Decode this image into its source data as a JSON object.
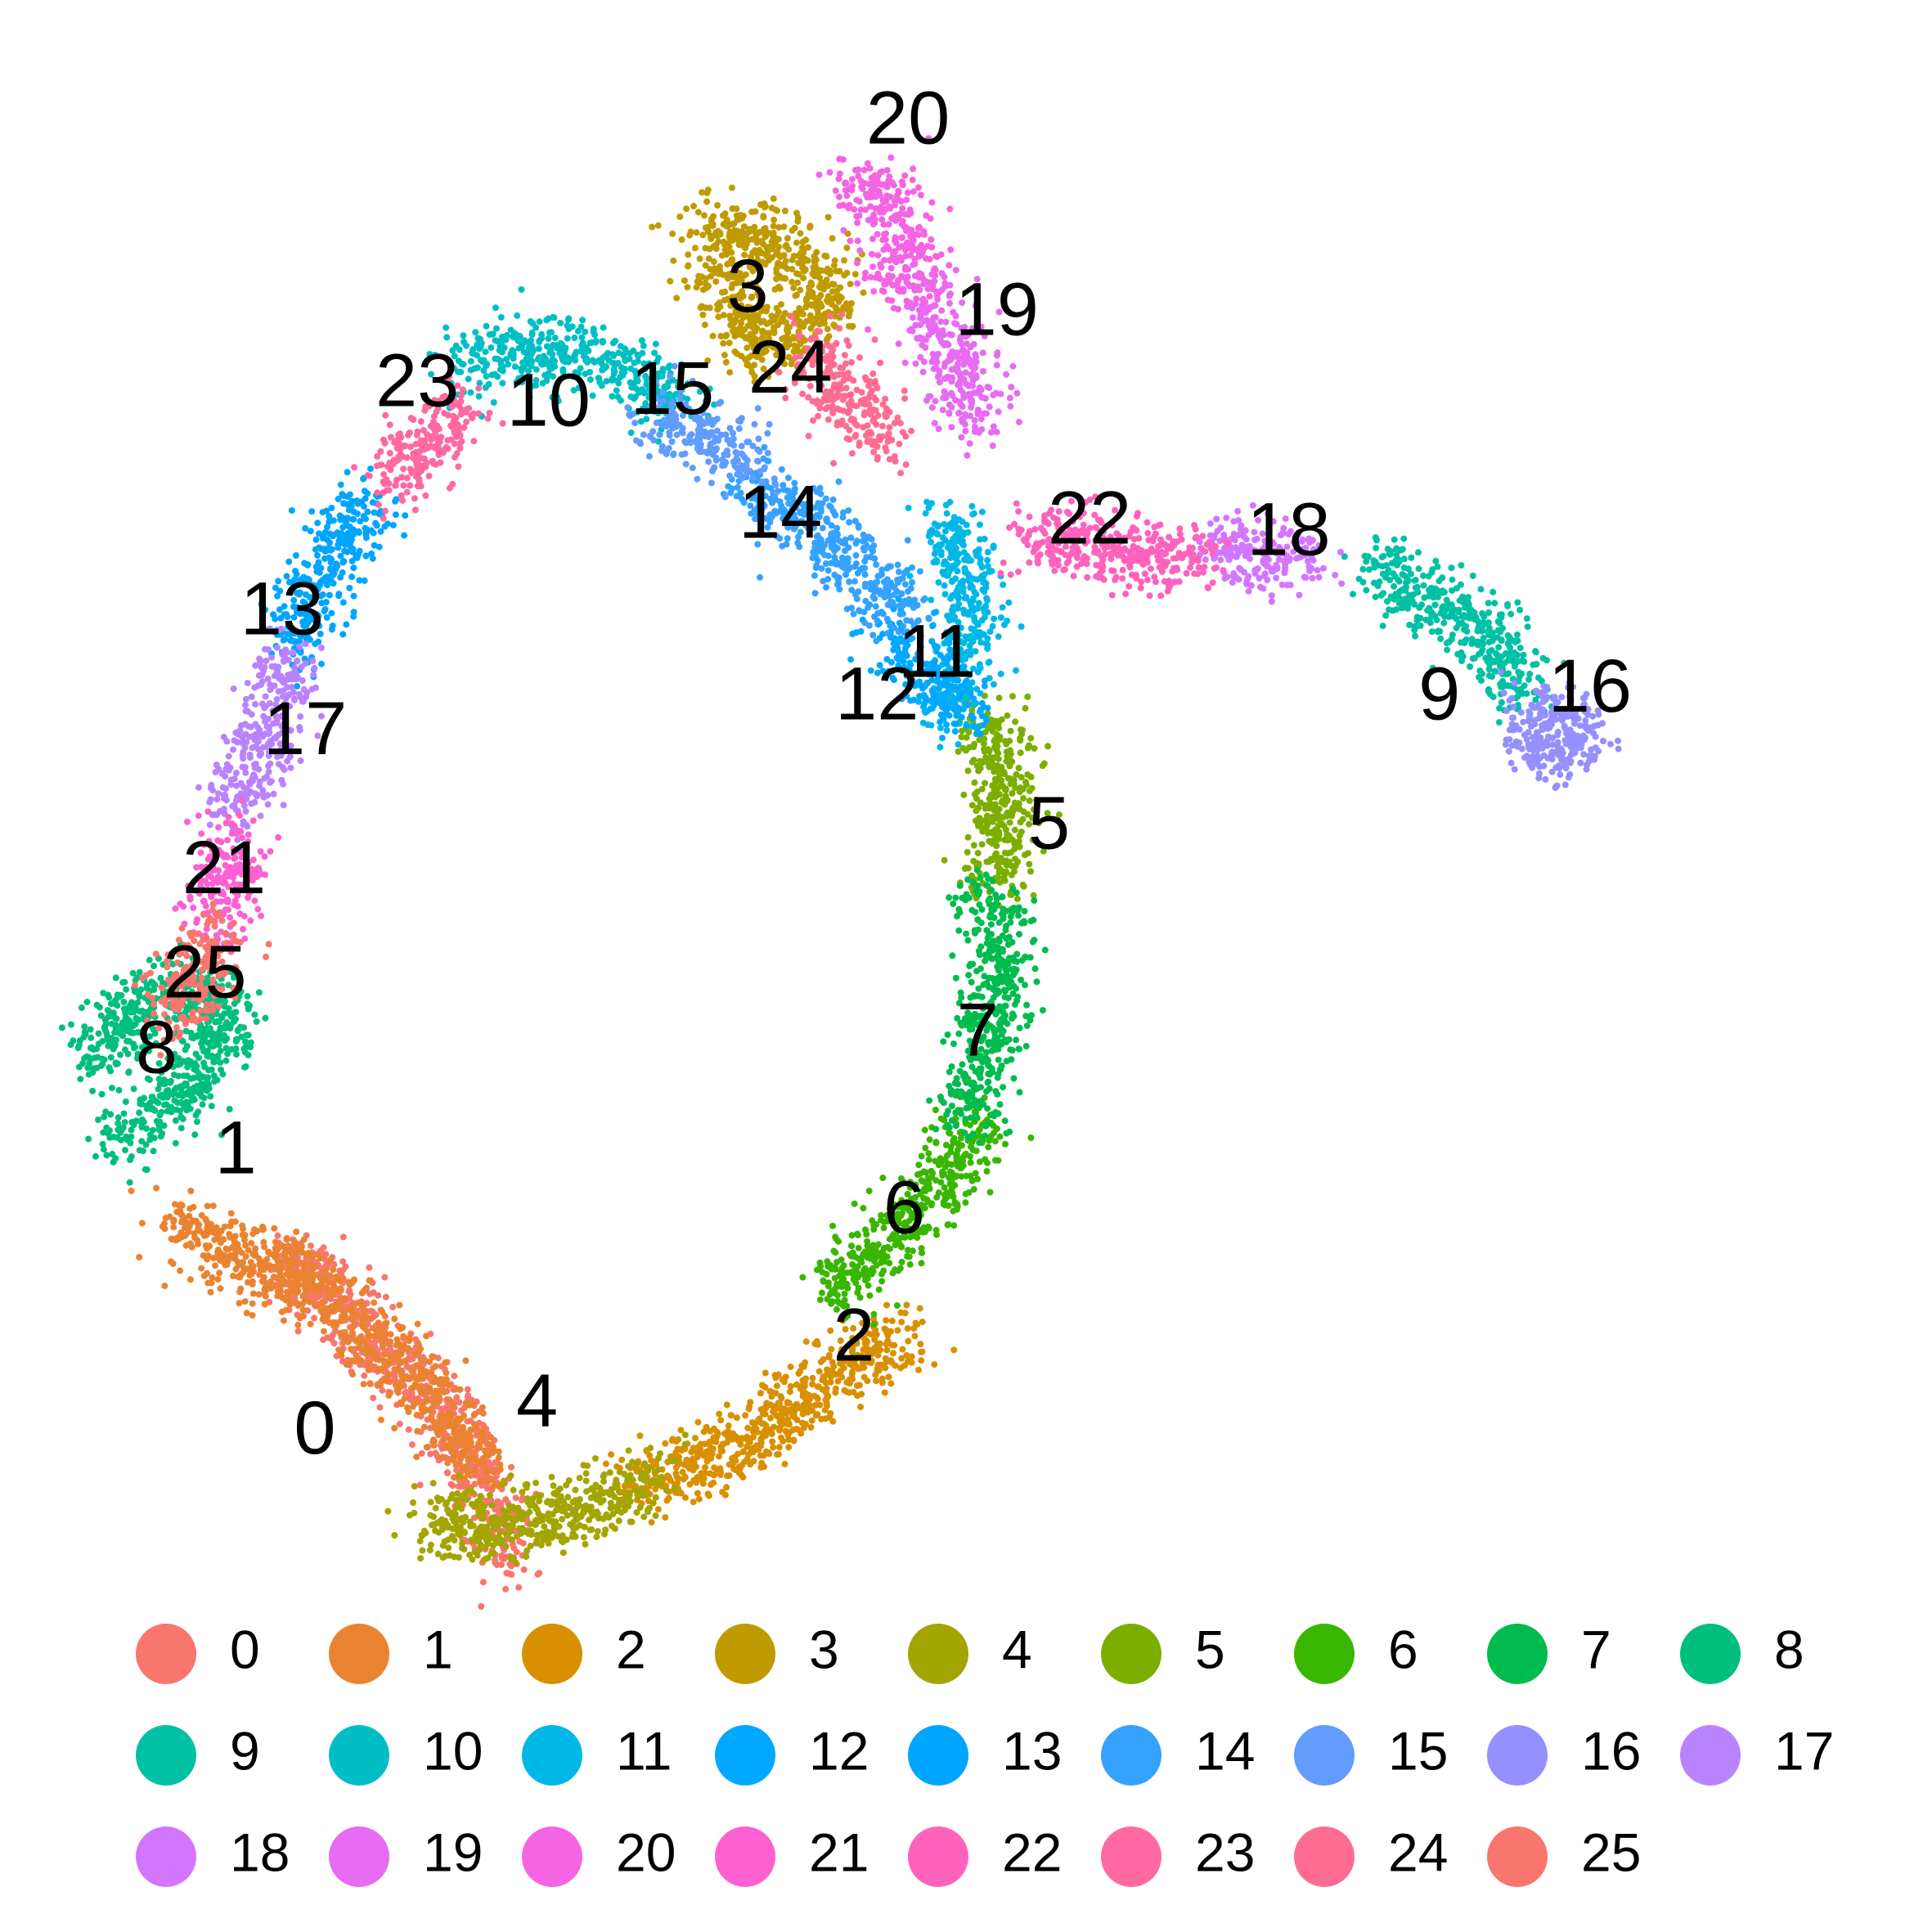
{
  "chart_data": {
    "type": "scatter",
    "title": "",
    "xlabel": "",
    "ylabel": "",
    "grid": false,
    "axes_visible": false,
    "legend_position": "bottom",
    "xlim": [
      0,
      100
    ],
    "ylim": [
      0,
      100
    ],
    "clusters": [
      {
        "id": "0",
        "color": "#F8766D",
        "label_pos": [
          16.3,
          25.8
        ],
        "path": [
          [
            26,
            19
          ],
          [
            26,
            21
          ],
          [
            23,
            27
          ],
          [
            19,
            31
          ],
          [
            15,
            35
          ]
        ]
      },
      {
        "id": "1",
        "color": "#EA8331",
        "label_pos": [
          12.2,
          40.3
        ],
        "path": [
          [
            9,
            37
          ],
          [
            12,
            35
          ],
          [
            17,
            33
          ],
          [
            22,
            28
          ],
          [
            25,
            24
          ]
        ]
      },
      {
        "id": "2",
        "color": "#D89000",
        "label_pos": [
          44.2,
          30.6
        ],
        "path": [
          [
            33,
            23
          ],
          [
            38,
            25
          ],
          [
            42,
            28
          ],
          [
            47,
            31
          ]
        ]
      },
      {
        "id": "3",
        "color": "#C09B00",
        "label_pos": [
          38.7,
          84.9
        ],
        "path": [
          [
            36,
            88
          ],
          [
            39,
            88
          ],
          [
            42,
            86
          ],
          [
            43,
            84
          ],
          [
            39,
            82
          ],
          [
            37,
            86
          ]
        ]
      },
      {
        "id": "4",
        "color": "#A3A500",
        "label_pos": [
          27.8,
          27.2
        ],
        "path": [
          [
            22,
            21
          ],
          [
            26,
            21
          ],
          [
            31,
            22
          ],
          [
            34,
            24
          ]
        ]
      },
      {
        "id": "5",
        "color": "#7CAE00",
        "label_pos": [
          54.3,
          57.1
        ],
        "path": [
          [
            51,
            63
          ],
          [
            52,
            60
          ],
          [
            52,
            56
          ],
          [
            51,
            54
          ]
        ]
      },
      {
        "id": "6",
        "color": "#39B600",
        "label_pos": [
          46.8,
          37.2
        ],
        "path": [
          [
            43,
            33
          ],
          [
            46,
            36
          ],
          [
            49,
            39
          ],
          [
            51,
            42
          ]
        ]
      },
      {
        "id": "7",
        "color": "#00BB4E",
        "label_pos": [
          50.6,
          46.4
        ],
        "path": [
          [
            51,
            54
          ],
          [
            52,
            50
          ],
          [
            51,
            46
          ],
          [
            50,
            42
          ]
        ]
      },
      {
        "id": "8",
        "color": "#00BF7D",
        "label_pos": [
          8.1,
          45.5
        ],
        "path": [
          [
            5,
            45
          ],
          [
            7,
            48
          ],
          [
            10,
            49
          ],
          [
            12,
            47
          ],
          [
            9,
            43
          ],
          [
            6,
            41
          ]
        ]
      },
      {
        "id": "9",
        "color": "#00C1A3",
        "label_pos": [
          74.5,
          63.8
        ],
        "path": [
          [
            71,
            71
          ],
          [
            74,
            69
          ],
          [
            77,
            67
          ],
          [
            79,
            64
          ]
        ]
      },
      {
        "id": "10",
        "color": "#00BFC4",
        "label_pos": [
          28.4,
          79.0
        ],
        "path": [
          [
            24,
            81
          ],
          [
            28,
            82
          ],
          [
            32,
            81
          ],
          [
            35,
            79
          ]
        ]
      },
      {
        "id": "11",
        "color": "#00B8E7",
        "label_pos": [
          48.5,
          66.0
        ],
        "path": [
          [
            49,
            73
          ],
          [
            50,
            70
          ],
          [
            50,
            66
          ],
          [
            49,
            63
          ]
        ]
      },
      {
        "id": "12",
        "color": "#00A9FF",
        "label_pos": [
          45.4,
          63.8
        ],
        "path": [
          [
            46,
            67
          ],
          [
            48,
            65
          ],
          [
            50,
            63
          ]
        ]
      },
      {
        "id": "13",
        "color": "#00A5FF",
        "label_pos": [
          14.6,
          68.2
        ],
        "path": [
          [
            19,
            74
          ],
          [
            18,
            72
          ],
          [
            16,
            69
          ],
          [
            15,
            66
          ]
        ]
      },
      {
        "id": "14",
        "color": "#35A2FF",
        "label_pos": [
          40.4,
          73.2
        ],
        "path": [
          [
            39,
            75
          ],
          [
            42,
            73
          ],
          [
            45,
            70
          ],
          [
            47,
            68
          ]
        ]
      },
      {
        "id": "15",
        "color": "#619CFF",
        "label_pos": [
          34.8,
          79.6
        ],
        "path": [
          [
            34,
            79
          ],
          [
            37,
            77
          ],
          [
            39,
            76
          ]
        ]
      },
      {
        "id": "16",
        "color": "#9590FF",
        "label_pos": [
          82.3,
          64.2
        ],
        "path": [
          [
            79,
            63
          ],
          [
            81,
            63
          ],
          [
            82,
            62
          ],
          [
            80,
            61
          ],
          [
            79,
            62
          ]
        ]
      },
      {
        "id": "17",
        "color": "#B983FF",
        "label_pos": [
          15.8,
          62.0
        ],
        "path": [
          [
            15,
            66
          ],
          [
            14,
            63
          ],
          [
            13,
            60
          ],
          [
            12,
            58
          ]
        ]
      },
      {
        "id": "18",
        "color": "#D376FF",
        "label_pos": [
          66.7,
          72.3
        ],
        "path": [
          [
            63,
            72
          ],
          [
            66,
            71
          ],
          [
            68,
            71
          ]
        ]
      },
      {
        "id": "19",
        "color": "#E76BF3",
        "label_pos": [
          51.6,
          83.7
        ],
        "path": [
          [
            48,
            85
          ],
          [
            49,
            82
          ],
          [
            50,
            80
          ],
          [
            51,
            78
          ]
        ]
      },
      {
        "id": "20",
        "color": "#F564E3",
        "label_pos": [
          47.0,
          93.6
        ],
        "path": [
          [
            44,
            90
          ],
          [
            46,
            90
          ],
          [
            47,
            87
          ],
          [
            46,
            85
          ]
        ]
      },
      {
        "id": "21",
        "color": "#FD61D1",
        "label_pos": [
          11.6,
          54.8
        ],
        "path": [
          [
            12,
            57
          ],
          [
            12,
            55
          ],
          [
            11,
            52
          ]
        ]
      },
      {
        "id": "22",
        "color": "#FF62BC",
        "label_pos": [
          56.4,
          72.9
        ],
        "path": [
          [
            53,
            72
          ],
          [
            56,
            72
          ],
          [
            59,
            71
          ],
          [
            62,
            71
          ]
        ]
      },
      {
        "id": "23",
        "color": "#FF68A1",
        "label_pos": [
          21.6,
          80.0
        ],
        "path": [
          [
            20,
            75
          ],
          [
            22,
            77
          ],
          [
            24,
            79
          ]
        ]
      },
      {
        "id": "24",
        "color": "#FF6C91",
        "label_pos": [
          40.9,
          80.7
        ],
        "path": [
          [
            42,
            82
          ],
          [
            44,
            79
          ],
          [
            46,
            77
          ]
        ]
      },
      {
        "id": "25",
        "color": "#F8766D",
        "label_pos": [
          10.6,
          49.4
        ],
        "path": [
          [
            11,
            52
          ],
          [
            10,
            49
          ],
          [
            9,
            47
          ]
        ]
      }
    ]
  }
}
